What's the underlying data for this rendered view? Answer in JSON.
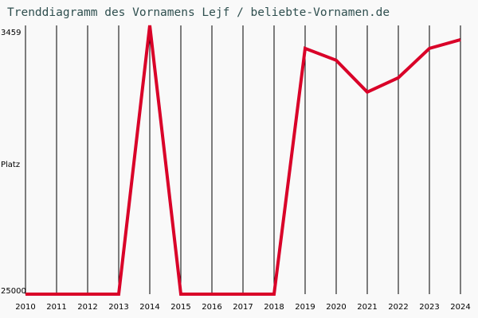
{
  "title": "Trenddiagramm des Vornamens Lejf / beliebte-Vornamen.de",
  "y_axis": {
    "label": "Platz",
    "top_label": "3459",
    "bottom_label": "25000"
  },
  "colors": {
    "line": "#d90028",
    "grid": "#000000",
    "title": "#2f4f4f",
    "background": "#f9f9f9"
  },
  "chart_data": {
    "type": "line",
    "title": "Trenddiagramm des Vornamens Lejf / beliebte-Vornamen.de",
    "xlabel": "",
    "ylabel": "Platz",
    "y_inverted": true,
    "ylim": [
      25000,
      3459
    ],
    "grid": "vertical",
    "categories": [
      "2010",
      "2011",
      "2012",
      "2013",
      "2014",
      "2015",
      "2016",
      "2017",
      "2018",
      "2019",
      "2020",
      "2021",
      "2022",
      "2023",
      "2024"
    ],
    "series": [
      {
        "name": "Lejf",
        "values": [
          25000,
          25000,
          25000,
          25000,
          3459,
          25000,
          25000,
          25000,
          25000,
          5300,
          6250,
          8800,
          7650,
          5300,
          4600
        ]
      }
    ]
  }
}
